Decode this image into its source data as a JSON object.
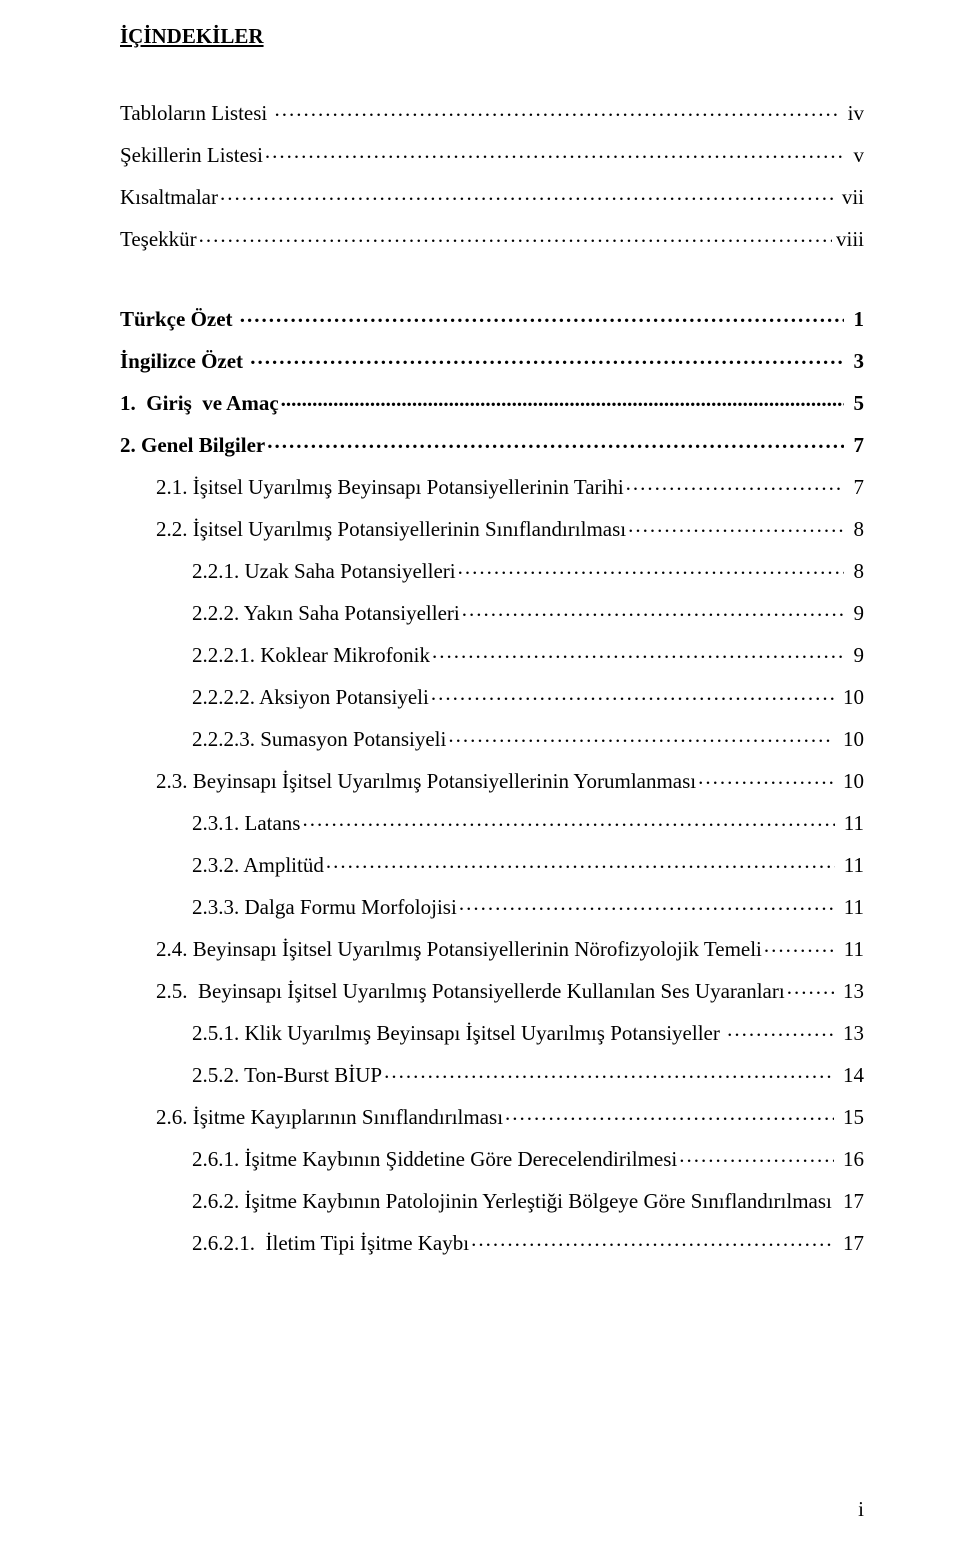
{
  "title": "İÇİNDEKİLER",
  "footer": "i",
  "entries": [
    {
      "label": "Tabloların Listesi ",
      "page": " iv",
      "indent": 0,
      "bold": false,
      "blankAfter": false
    },
    {
      "label": "Şekillerin Listesi",
      "page": " v",
      "indent": 0,
      "bold": false,
      "blankAfter": false
    },
    {
      "label": "Kısaltmalar",
      "page": " vii",
      "indent": 0,
      "bold": false,
      "blankAfter": false
    },
    {
      "label": "Teşekkür",
      "page": "viii",
      "indent": 0,
      "bold": false,
      "blankAfter": true
    },
    {
      "label": "Türkçe Özet ",
      "page": " 1",
      "indent": 0,
      "bold": true,
      "boldDots": true,
      "blankAfter": false
    },
    {
      "label": "İngilizce Özet ",
      "page": " 3",
      "indent": 0,
      "bold": true,
      "boldDots": true,
      "blankAfter": false
    },
    {
      "label": "1.  Giriş  ve Amaç",
      "page": " 5",
      "indent": 0,
      "bold": true,
      "boldDots": true,
      "giris": true,
      "blankAfter": false
    },
    {
      "label": "2. Genel Bilgiler",
      "page": " 7",
      "indent": 0,
      "bold": true,
      "boldDots": true,
      "blankAfter": false
    },
    {
      "label": "2.1. İşitsel Uyarılmış Beyinsapı Potansiyellerinin Tarihi",
      "page": " 7",
      "indent": 1,
      "bold": false,
      "blankAfter": false
    },
    {
      "label": "2.2. İşitsel Uyarılmış Potansiyellerinin Sınıflandırılması",
      "page": " 8",
      "indent": 1,
      "bold": false,
      "blankAfter": false
    },
    {
      "label": "2.2.1. Uzak Saha Potansiyelleri",
      "page": " 8",
      "indent": 2,
      "bold": false,
      "blankAfter": false
    },
    {
      "label": "2.2.2. Yakın Saha Potansiyelleri",
      "page": " 9",
      "indent": 2,
      "bold": false,
      "blankAfter": false
    },
    {
      "label": "2.2.2.1. Koklear Mikrofonik",
      "page": " 9",
      "indent": 2,
      "bold": false,
      "blankAfter": false
    },
    {
      "label": "2.2.2.2. Aksiyon Potansiyeli",
      "page": " 10",
      "indent": 2,
      "bold": false,
      "blankAfter": false
    },
    {
      "label": "2.2.2.3. Sumasyon Potansiyeli",
      "page": " 10",
      "indent": 2,
      "bold": false,
      "blankAfter": false
    },
    {
      "label": "2.3. Beyinsapı İşitsel Uyarılmış Potansiyellerinin Yorumlanması",
      "page": " 10",
      "indent": 1,
      "bold": false,
      "blankAfter": false
    },
    {
      "label": "2.3.1. Latans",
      "page": " 11",
      "indent": 2,
      "bold": false,
      "blankAfter": false
    },
    {
      "label": "2.3.2. Amplitüd",
      "page": " 11",
      "indent": 2,
      "bold": false,
      "blankAfter": false
    },
    {
      "label": "2.3.3. Dalga Formu Morfolojisi",
      "page": " 11",
      "indent": 2,
      "bold": false,
      "blankAfter": false
    },
    {
      "label": "2.4. Beyinsapı İşitsel Uyarılmış Potansiyellerinin Nörofizyolojik Temeli",
      "page": " 11",
      "indent": 1,
      "bold": false,
      "blankAfter": false
    },
    {
      "label": "2.5.  Beyinsapı İşitsel Uyarılmış Potansiyellerde Kullanılan Ses Uyaranları",
      "page": " 13",
      "indent": 1,
      "bold": false,
      "blankAfter": false
    },
    {
      "label": "2.5.1. Klik Uyarılmış Beyinsapı İşitsel Uyarılmış Potansiyeller ",
      "page": " 13",
      "indent": 2,
      "bold": false,
      "blankAfter": false
    },
    {
      "label": "2.5.2. Ton-Burst BİUP",
      "page": " 14",
      "indent": 2,
      "bold": false,
      "blankAfter": false
    },
    {
      "label": "2.6. İşitme Kayıplarının Sınıflandırılması",
      "page": " 15",
      "indent": 1,
      "bold": false,
      "blankAfter": false
    },
    {
      "label": "2.6.1. İşitme Kaybının Şiddetine Göre Derecelendirilmesi",
      "page": " 16",
      "indent": 2,
      "bold": false,
      "blankAfter": false
    },
    {
      "label": "2.6.2. İşitme Kaybının Patolojinin Yerleştiği Bölgeye Göre Sınıflandırılması",
      "page": " 17",
      "indent": 2,
      "bold": false,
      "noDots": true,
      "blankAfter": false
    },
    {
      "label": "2.6.2.1.  İletim Tipi İşitme Kaybı",
      "page": " 17",
      "indent": 2,
      "bold": false,
      "blankAfter": false
    }
  ]
}
